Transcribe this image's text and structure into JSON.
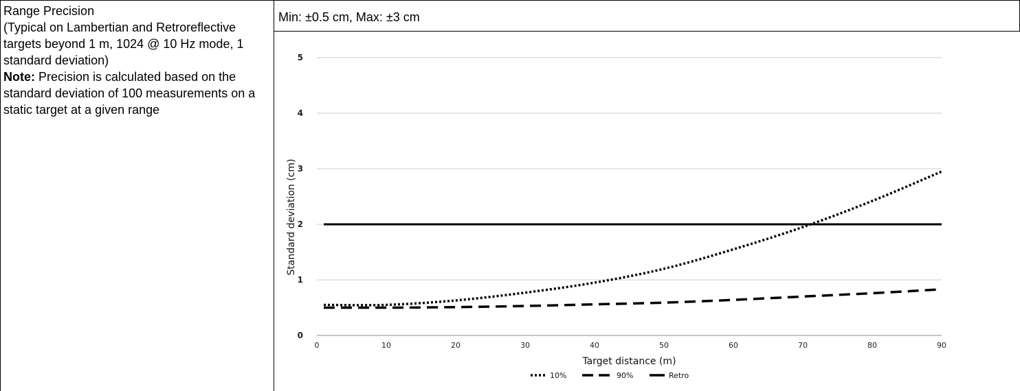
{
  "spec": {
    "label_title": "Range Precision",
    "label_desc": "(Typical on Lambertian and Retroreflective targets beyond 1 m, 1024 @ 10 Hz mode, 1 standard deviation)",
    "note_label": "Note:",
    "note_text": "Precision is calculated based on the standard deviation of 100 measurements on a static target at a given range",
    "value": "Min: ±0.5 cm, Max: ±3 cm"
  },
  "chart_data": {
    "type": "line",
    "xlabel": "Target distance (m)",
    "ylabel": "Standard deviation (cm)",
    "xlim": [
      0,
      90
    ],
    "ylim": [
      0,
      5
    ],
    "xticks": [
      0,
      10,
      20,
      30,
      40,
      50,
      60,
      70,
      80,
      90
    ],
    "yticks": [
      0,
      1,
      2,
      3,
      4,
      5
    ],
    "grid": "horizontal",
    "legend_position": "bottom",
    "series": [
      {
        "name": "10%",
        "style": "dotted",
        "x": [
          1,
          10,
          20,
          30,
          40,
          50,
          60,
          70,
          80,
          90
        ],
        "values": [
          0.55,
          0.55,
          0.63,
          0.77,
          0.95,
          1.2,
          1.55,
          1.95,
          2.42,
          2.95
        ]
      },
      {
        "name": "90%",
        "style": "dashed",
        "x": [
          1,
          10,
          20,
          30,
          40,
          50,
          60,
          70,
          80,
          90
        ],
        "values": [
          0.5,
          0.5,
          0.51,
          0.53,
          0.56,
          0.59,
          0.64,
          0.7,
          0.76,
          0.83
        ]
      },
      {
        "name": "Retro",
        "style": "solid",
        "x": [
          1,
          90
        ],
        "values": [
          2.0,
          2.0
        ]
      }
    ],
    "colors": {
      "series": "#000000",
      "grid": "#cccccc"
    }
  }
}
